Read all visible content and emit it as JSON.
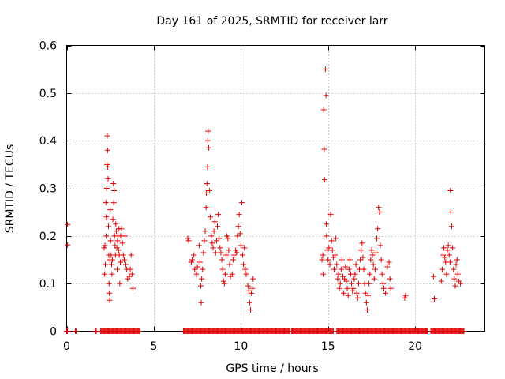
{
  "chart_data": {
    "type": "scatter",
    "title": "Day 161 of 2025, SRMTID for receiver larr",
    "xlabel": "GPS time / hours",
    "ylabel": "SRMTID / TECUs",
    "xlim": [
      0,
      24
    ],
    "ylim": [
      0,
      0.6
    ],
    "xticks": [
      0,
      5,
      10,
      15,
      20
    ],
    "yticks": [
      0,
      0.1,
      0.2,
      0.3,
      0.4,
      0.5,
      0.6
    ],
    "ytick_labels": [
      "0",
      "0.1",
      "0.2",
      "0.3",
      "0.4",
      "0.5",
      "0.6"
    ],
    "grid": true,
    "marker": "+",
    "color": "#e00000",
    "series": [
      {
        "name": "SRMTID",
        "points": [
          [
            0.05,
            0.224
          ],
          [
            0.05,
            0.181
          ],
          [
            2.15,
            0.175
          ],
          [
            2.18,
            0.12
          ],
          [
            2.2,
            0.18
          ],
          [
            2.22,
            0.14
          ],
          [
            2.25,
            0.27
          ],
          [
            2.27,
            0.2
          ],
          [
            2.28,
            0.24
          ],
          [
            2.3,
            0.3
          ],
          [
            2.32,
            0.35
          ],
          [
            2.33,
            0.41
          ],
          [
            2.35,
            0.38
          ],
          [
            2.36,
            0.345
          ],
          [
            2.38,
            0.32
          ],
          [
            2.4,
            0.22
          ],
          [
            2.42,
            0.16
          ],
          [
            2.43,
            0.1
          ],
          [
            2.45,
            0.08
          ],
          [
            2.47,
            0.065
          ],
          [
            2.48,
            0.15
          ],
          [
            2.5,
            0.255
          ],
          [
            2.52,
            0.19
          ],
          [
            2.55,
            0.16
          ],
          [
            2.58,
            0.14
          ],
          [
            2.6,
            0.12
          ],
          [
            2.62,
            0.15
          ],
          [
            2.65,
            0.235
          ],
          [
            2.68,
            0.31
          ],
          [
            2.7,
            0.27
          ],
          [
            2.72,
            0.295
          ],
          [
            2.75,
            0.2
          ],
          [
            2.78,
            0.18
          ],
          [
            2.8,
            0.16
          ],
          [
            2.82,
            0.225
          ],
          [
            2.85,
            0.21
          ],
          [
            2.88,
            0.175
          ],
          [
            2.9,
            0.13
          ],
          [
            2.92,
            0.19
          ],
          [
            2.95,
            0.2
          ],
          [
            2.98,
            0.17
          ],
          [
            3.0,
            0.215
          ],
          [
            3.02,
            0.16
          ],
          [
            3.05,
            0.1
          ],
          [
            3.08,
            0.145
          ],
          [
            3.1,
            0.2
          ],
          [
            3.15,
            0.215
          ],
          [
            3.2,
            0.185
          ],
          [
            3.25,
            0.16
          ],
          [
            3.3,
            0.15
          ],
          [
            3.35,
            0.2
          ],
          [
            3.4,
            0.14
          ],
          [
            3.45,
            0.13
          ],
          [
            3.5,
            0.11
          ],
          [
            3.6,
            0.115
          ],
          [
            3.65,
            0.13
          ],
          [
            3.7,
            0.16
          ],
          [
            3.75,
            0.12
          ],
          [
            3.8,
            0.09
          ],
          [
            6.95,
            0.195
          ],
          [
            7.0,
            0.19
          ],
          [
            7.15,
            0.145
          ],
          [
            7.2,
            0.15
          ],
          [
            7.3,
            0.16
          ],
          [
            7.35,
            0.13
          ],
          [
            7.45,
            0.12
          ],
          [
            7.5,
            0.135
          ],
          [
            7.6,
            0.18
          ],
          [
            7.65,
            0.145
          ],
          [
            7.7,
            0.095
          ],
          [
            7.72,
            0.06
          ],
          [
            7.75,
            0.11
          ],
          [
            7.8,
            0.13
          ],
          [
            7.85,
            0.165
          ],
          [
            7.9,
            0.19
          ],
          [
            7.95,
            0.21
          ],
          [
            8.0,
            0.26
          ],
          [
            8.02,
            0.29
          ],
          [
            8.05,
            0.31
          ],
          [
            8.08,
            0.345
          ],
          [
            8.1,
            0.4
          ],
          [
            8.12,
            0.42
          ],
          [
            8.15,
            0.385
          ],
          [
            8.2,
            0.295
          ],
          [
            8.25,
            0.24
          ],
          [
            8.3,
            0.2
          ],
          [
            8.35,
            0.185
          ],
          [
            8.4,
            0.175
          ],
          [
            8.45,
            0.21
          ],
          [
            8.5,
            0.23
          ],
          [
            8.55,
            0.165
          ],
          [
            8.6,
            0.19
          ],
          [
            8.65,
            0.22
          ],
          [
            8.7,
            0.245
          ],
          [
            8.75,
            0.195
          ],
          [
            8.8,
            0.175
          ],
          [
            8.85,
            0.165
          ],
          [
            8.9,
            0.15
          ],
          [
            8.95,
            0.13
          ],
          [
            9.0,
            0.105
          ],
          [
            9.05,
            0.1
          ],
          [
            9.1,
            0.12
          ],
          [
            9.15,
            0.16
          ],
          [
            9.2,
            0.2
          ],
          [
            9.25,
            0.195
          ],
          [
            9.3,
            0.17
          ],
          [
            9.35,
            0.14
          ],
          [
            9.4,
            0.115
          ],
          [
            9.5,
            0.12
          ],
          [
            9.55,
            0.15
          ],
          [
            9.6,
            0.16
          ],
          [
            9.7,
            0.17
          ],
          [
            9.75,
            0.165
          ],
          [
            9.8,
            0.2
          ],
          [
            9.85,
            0.22
          ],
          [
            9.9,
            0.245
          ],
          [
            9.95,
            0.205
          ],
          [
            10.0,
            0.18
          ],
          [
            10.05,
            0.27
          ],
          [
            10.1,
            0.16
          ],
          [
            10.15,
            0.14
          ],
          [
            10.2,
            0.175
          ],
          [
            10.25,
            0.13
          ],
          [
            10.3,
            0.12
          ],
          [
            10.4,
            0.095
          ],
          [
            10.45,
            0.085
          ],
          [
            10.5,
            0.06
          ],
          [
            10.55,
            0.045
          ],
          [
            10.6,
            0.08
          ],
          [
            10.65,
            0.09
          ],
          [
            10.7,
            0.11
          ],
          [
            14.65,
            0.15
          ],
          [
            14.7,
            0.16
          ],
          [
            14.72,
            0.12
          ],
          [
            14.75,
            0.465
          ],
          [
            14.78,
            0.382
          ],
          [
            14.8,
            0.318
          ],
          [
            14.85,
            0.55
          ],
          [
            14.88,
            0.495
          ],
          [
            14.9,
            0.225
          ],
          [
            14.92,
            0.2
          ],
          [
            14.95,
            0.17
          ],
          [
            15.0,
            0.15
          ],
          [
            15.05,
            0.175
          ],
          [
            15.1,
            0.14
          ],
          [
            15.15,
            0.245
          ],
          [
            15.2,
            0.19
          ],
          [
            15.25,
            0.17
          ],
          [
            15.3,
            0.155
          ],
          [
            15.35,
            0.13
          ],
          [
            15.4,
            0.16
          ],
          [
            15.45,
            0.195
          ],
          [
            15.5,
            0.14
          ],
          [
            15.55,
            0.11
          ],
          [
            15.6,
            0.12
          ],
          [
            15.65,
            0.09
          ],
          [
            15.7,
            0.1
          ],
          [
            15.75,
            0.13
          ],
          [
            15.8,
            0.15
          ],
          [
            15.85,
            0.115
          ],
          [
            15.9,
            0.08
          ],
          [
            15.95,
            0.11
          ],
          [
            16.0,
            0.135
          ],
          [
            16.05,
            0.105
          ],
          [
            16.1,
            0.09
          ],
          [
            16.15,
            0.075
          ],
          [
            16.2,
            0.13
          ],
          [
            16.25,
            0.15
          ],
          [
            16.3,
            0.12
          ],
          [
            16.35,
            0.1
          ],
          [
            16.4,
            0.085
          ],
          [
            16.45,
            0.09
          ],
          [
            16.5,
            0.11
          ],
          [
            16.55,
            0.12
          ],
          [
            16.6,
            0.14
          ],
          [
            16.65,
            0.08
          ],
          [
            16.7,
            0.07
          ],
          [
            16.75,
            0.1
          ],
          [
            16.8,
            0.13
          ],
          [
            16.85,
            0.15
          ],
          [
            16.9,
            0.17
          ],
          [
            16.95,
            0.185
          ],
          [
            17.0,
            0.155
          ],
          [
            17.05,
            0.13
          ],
          [
            17.1,
            0.1
          ],
          [
            17.15,
            0.08
          ],
          [
            17.2,
            0.06
          ],
          [
            17.25,
            0.045
          ],
          [
            17.3,
            0.075
          ],
          [
            17.35,
            0.1
          ],
          [
            17.4,
            0.12
          ],
          [
            17.45,
            0.15
          ],
          [
            17.5,
            0.17
          ],
          [
            17.55,
            0.16
          ],
          [
            17.6,
            0.14
          ],
          [
            17.65,
            0.11
          ],
          [
            17.7,
            0.13
          ],
          [
            17.75,
            0.165
          ],
          [
            17.8,
            0.195
          ],
          [
            17.85,
            0.215
          ],
          [
            17.9,
            0.26
          ],
          [
            17.95,
            0.25
          ],
          [
            18.0,
            0.18
          ],
          [
            18.05,
            0.15
          ],
          [
            18.1,
            0.12
          ],
          [
            18.15,
            0.1
          ],
          [
            18.2,
            0.09
          ],
          [
            18.3,
            0.08
          ],
          [
            18.4,
            0.135
          ],
          [
            18.5,
            0.145
          ],
          [
            18.55,
            0.11
          ],
          [
            18.6,
            0.09
          ],
          [
            19.4,
            0.07
          ],
          [
            19.45,
            0.075
          ],
          [
            21.05,
            0.115
          ],
          [
            21.1,
            0.068
          ],
          [
            21.5,
            0.105
          ],
          [
            21.55,
            0.13
          ],
          [
            21.6,
            0.16
          ],
          [
            21.65,
            0.175
          ],
          [
            21.7,
            0.155
          ],
          [
            21.75,
            0.145
          ],
          [
            21.8,
            0.12
          ],
          [
            21.85,
            0.17
          ],
          [
            21.9,
            0.18
          ],
          [
            21.95,
            0.16
          ],
          [
            22.0,
            0.145
          ],
          [
            22.02,
            0.295
          ],
          [
            22.05,
            0.25
          ],
          [
            22.1,
            0.22
          ],
          [
            22.15,
            0.175
          ],
          [
            22.2,
            0.13
          ],
          [
            22.25,
            0.11
          ],
          [
            22.3,
            0.095
          ],
          [
            22.35,
            0.14
          ],
          [
            22.4,
            0.15
          ],
          [
            22.45,
            0.12
          ],
          [
            22.5,
            0.105
          ],
          [
            22.6,
            0.1
          ]
        ],
        "zero_runs": [
          [
            0.0,
            0.05
          ],
          [
            0.5,
            0.55
          ],
          [
            1.65,
            1.7
          ],
          [
            1.95,
            4.2
          ],
          [
            6.7,
            12.8
          ],
          [
            12.9,
            15.3
          ],
          [
            15.5,
            20.7
          ],
          [
            20.9,
            22.8
          ]
        ]
      }
    ]
  }
}
